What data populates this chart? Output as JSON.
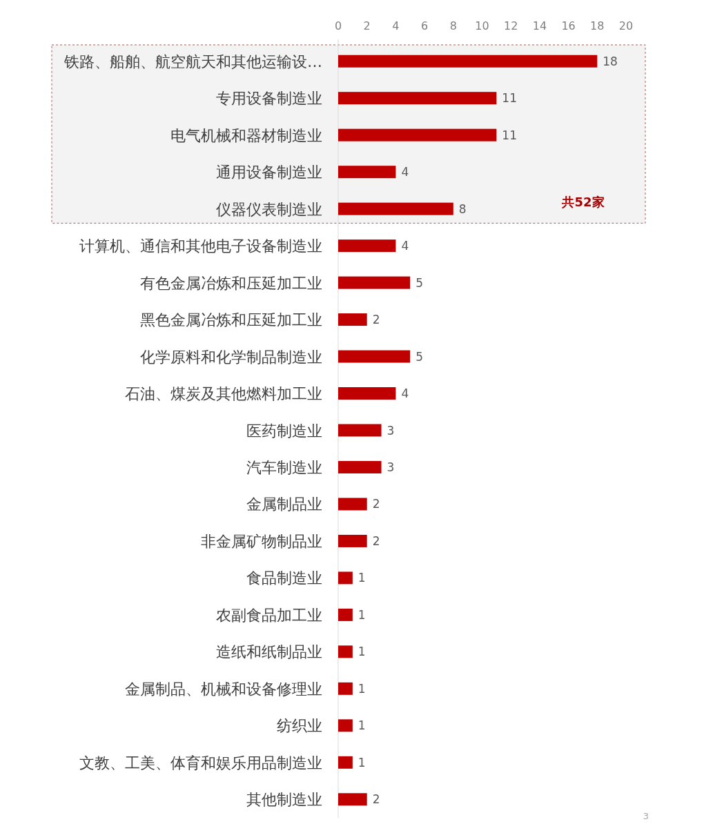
{
  "chart_data": {
    "type": "bar",
    "orientation": "horizontal",
    "categories": [
      "铁路、船舶、航空航天和其他运输设…",
      "专用设备制造业",
      "电气机械和器材制造业",
      "通用设备制造业",
      "仪器仪表制造业",
      "计算机、通信和其他电子设备制造业",
      "有色金属冶炼和压延加工业",
      "黑色金属冶炼和压延加工业",
      "化学原料和化学制品制造业",
      "石油、煤炭及其他燃料加工业",
      "医药制造业",
      "汽车制造业",
      "金属制品业",
      "非金属矿物制品业",
      "食品制造业",
      "农副食品加工业",
      "造纸和纸制品业",
      "金属制品、机械和设备修理业",
      "纺织业",
      "文教、工美、体育和娱乐用品制造业",
      "其他制造业"
    ],
    "values": [
      18,
      11,
      11,
      4,
      8,
      4,
      5,
      2,
      5,
      4,
      3,
      3,
      2,
      2,
      1,
      1,
      1,
      1,
      1,
      1,
      2
    ],
    "color": "#c00000",
    "xlim": [
      0,
      20
    ],
    "xticks": [
      0,
      2,
      4,
      6,
      8,
      10,
      12,
      14,
      16,
      18,
      20
    ],
    "grid": false,
    "data_labels": true,
    "bands": [
      {
        "axis": "y",
        "from": "铁路、船舶、航空航天和其他运输设…",
        "to": "仪器仪表制造业",
        "label": "共52家",
        "color": "#f3f3f3"
      }
    ],
    "annotations": [
      "3"
    ]
  }
}
